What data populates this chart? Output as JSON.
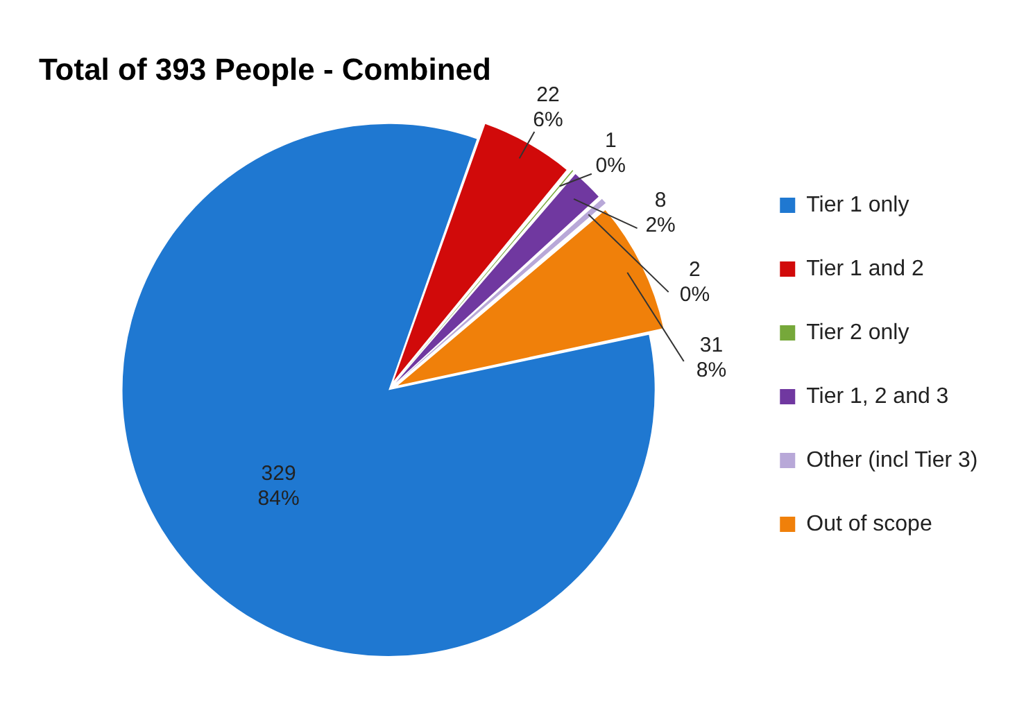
{
  "chart_data": {
    "type": "pie",
    "title": "Total of 393 People - Combined",
    "categories": [
      "Tier 1 only",
      "Tier 1 and 2",
      "Tier 2 only",
      "Tier 1, 2 and 3",
      "Other (incl Tier 3)",
      "Out of scope"
    ],
    "values": [
      329,
      22,
      1,
      8,
      2,
      31
    ],
    "colors": [
      "#1f78d1",
      "#d10a0a",
      "#76a83a",
      "#7038a0",
      "#b8a8d8",
      "#f0800a"
    ],
    "value_labels": [
      "329\n84%",
      "22\n6%",
      "1\n0%",
      "8\n2%",
      "2\n0%",
      "31\n8%"
    ],
    "legend": "right"
  }
}
